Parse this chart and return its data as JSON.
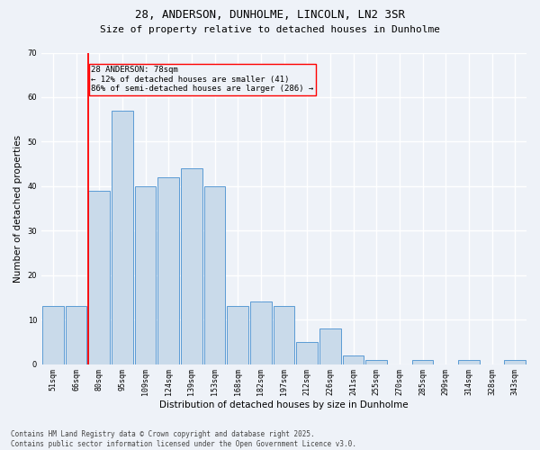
{
  "title1": "28, ANDERSON, DUNHOLME, LINCOLN, LN2 3SR",
  "title2": "Size of property relative to detached houses in Dunholme",
  "xlabel": "Distribution of detached houses by size in Dunholme",
  "ylabel": "Number of detached properties",
  "categories": [
    "51sqm",
    "66sqm",
    "80sqm",
    "95sqm",
    "109sqm",
    "124sqm",
    "139sqm",
    "153sqm",
    "168sqm",
    "182sqm",
    "197sqm",
    "212sqm",
    "226sqm",
    "241sqm",
    "255sqm",
    "270sqm",
    "285sqm",
    "299sqm",
    "314sqm",
    "328sqm",
    "343sqm"
  ],
  "values": [
    13,
    13,
    39,
    57,
    40,
    42,
    44,
    40,
    13,
    14,
    13,
    5,
    8,
    2,
    1,
    0,
    1,
    0,
    1,
    0,
    1
  ],
  "bar_color": "#c9daea",
  "bar_edge_color": "#5b9bd5",
  "red_line_index": 2,
  "annotation_text": "28 ANDERSON: 78sqm\n← 12% of detached houses are smaller (41)\n86% of semi-detached houses are larger (286) →",
  "ylim": [
    0,
    70
  ],
  "yticks": [
    0,
    10,
    20,
    30,
    40,
    50,
    60,
    70
  ],
  "footer1": "Contains HM Land Registry data © Crown copyright and database right 2025.",
  "footer2": "Contains public sector information licensed under the Open Government Licence v3.0.",
  "bg_color": "#eef2f8",
  "grid_color": "#ffffff",
  "title_fontsize": 9,
  "subtitle_fontsize": 8,
  "axis_label_fontsize": 7.5,
  "tick_fontsize": 6,
  "annotation_fontsize": 6.5,
  "footer_fontsize": 5.5
}
